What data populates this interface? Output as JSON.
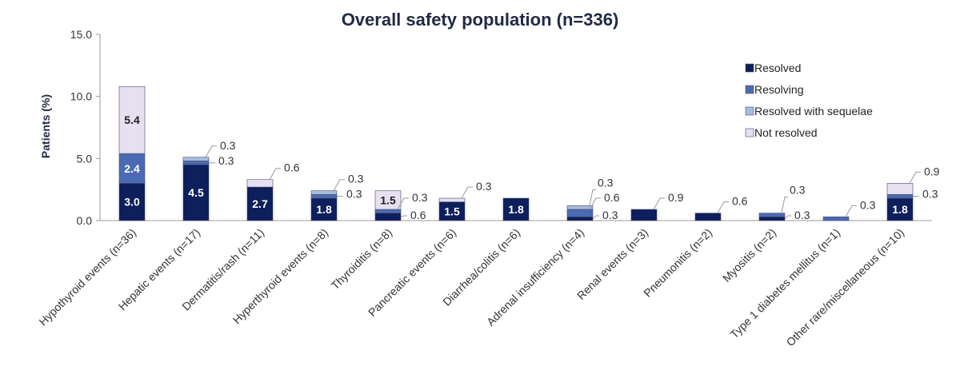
{
  "chart_data": {
    "type": "bar",
    "stacked": true,
    "title": "Overall safety population (n=336)",
    "xlabel": "",
    "ylabel": "Patients (%)",
    "ylim": [
      0,
      15
    ],
    "yticks": [
      "0.0",
      "5.0",
      "10.0",
      "15.0"
    ],
    "grid": false,
    "legend_position": "top-right",
    "categories": [
      "Hypothyroid events (n=36)",
      "Hepatic events (n=17)",
      "Dermatitis/rash (n=11)",
      "Hyperthyroid events (n=8)",
      "Thyroiditis (n=8)",
      "Pancreatic events (n=6)",
      "Diarrhea/colitis (n=6)",
      "Adrenal insufficiency (n=4)",
      "Renal events (n=3)",
      "Pneumonitis (n=2)",
      "Myositis (n=2)",
      "Type 1 diabetes mellitus (n=1)",
      "Other rare/miscellaneous (n=10)"
    ],
    "series": [
      {
        "name": "Resolved",
        "color": "#0d1f5c",
        "values": [
          3.0,
          4.5,
          2.7,
          1.8,
          0.6,
          1.5,
          1.8,
          0.3,
          0.9,
          0.6,
          0.3,
          0,
          1.8
        ]
      },
      {
        "name": "Resolving",
        "color": "#4a6bb3",
        "values": [
          2.4,
          0.3,
          0,
          0.3,
          0.3,
          0,
          0,
          0.6,
          0,
          0,
          0.3,
          0.3,
          0.3
        ]
      },
      {
        "name": "Resolved with sequelae",
        "color": "#a6bddb",
        "values": [
          0,
          0.3,
          0,
          0.3,
          0,
          0,
          0,
          0.3,
          0,
          0,
          0,
          0,
          0
        ]
      },
      {
        "name": "Not resolved",
        "color": "#e6e0f0",
        "values": [
          5.4,
          0,
          0.6,
          0,
          1.5,
          0.3,
          0,
          0,
          0,
          0,
          0,
          0,
          0.9
        ]
      }
    ],
    "data_labels": [
      [
        {
          "text": "3.0",
          "s": 0,
          "mode": "in"
        },
        {
          "text": "2.4",
          "s": 1,
          "mode": "in"
        },
        {
          "text": "5.4",
          "s": 3,
          "mode": "in"
        }
      ],
      [
        {
          "text": "4.5",
          "s": 0,
          "mode": "in"
        },
        {
          "text": "0.3",
          "s": 1,
          "mode": "right"
        },
        {
          "text": "0.3",
          "s": 2,
          "mode": "upright"
        }
      ],
      [
        {
          "text": "2.7",
          "s": 0,
          "mode": "in"
        },
        {
          "text": "0.6",
          "s": 3,
          "mode": "upright"
        }
      ],
      [
        {
          "text": "1.8",
          "s": 0,
          "mode": "in"
        },
        {
          "text": "0.3",
          "s": 1,
          "mode": "right"
        },
        {
          "text": "0.3",
          "s": 2,
          "mode": "upright"
        }
      ],
      [
        {
          "text": "0.6",
          "s": 0,
          "mode": "downright"
        },
        {
          "text": "0.3",
          "s": 1,
          "mode": "upright"
        },
        {
          "text": "1.5",
          "s": 3,
          "mode": "in"
        }
      ],
      [
        {
          "text": "1.5",
          "s": 0,
          "mode": "in"
        },
        {
          "text": "0.3",
          "s": 3,
          "mode": "upright"
        }
      ],
      [
        {
          "text": "1.8",
          "s": 0,
          "mode": "in"
        }
      ],
      [
        {
          "text": "0.3",
          "s": 0,
          "mode": "downright"
        },
        {
          "text": "0.6",
          "s": 1,
          "mode": "upright"
        },
        {
          "text": "0.3",
          "s": 2,
          "mode": "up"
        }
      ],
      [
        {
          "text": "0.9",
          "s": 0,
          "mode": "upright"
        }
      ],
      [
        {
          "text": "0.6",
          "s": 0,
          "mode": "upright"
        }
      ],
      [
        {
          "text": "0.3",
          "s": 0,
          "mode": "downright"
        },
        {
          "text": "0.3",
          "s": 1,
          "mode": "up"
        }
      ],
      [
        {
          "text": "0.3",
          "s": 1,
          "mode": "upright"
        }
      ],
      [
        {
          "text": "1.8",
          "s": 0,
          "mode": "in"
        },
        {
          "text": "0.3",
          "s": 1,
          "mode": "right"
        },
        {
          "text": "0.9",
          "s": 3,
          "mode": "upright"
        }
      ]
    ]
  }
}
